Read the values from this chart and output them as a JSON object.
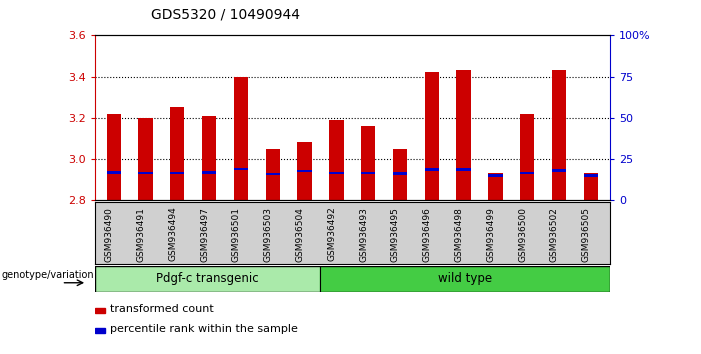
{
  "title": "GDS5320 / 10490944",
  "samples": [
    "GSM936490",
    "GSM936491",
    "GSM936494",
    "GSM936497",
    "GSM936501",
    "GSM936503",
    "GSM936504",
    "GSM936492",
    "GSM936493",
    "GSM936495",
    "GSM936496",
    "GSM936498",
    "GSM936499",
    "GSM936500",
    "GSM936502",
    "GSM936505"
  ],
  "red_values": [
    3.22,
    3.2,
    3.25,
    3.21,
    3.4,
    3.05,
    3.08,
    3.19,
    3.16,
    3.05,
    3.42,
    3.43,
    2.93,
    3.22,
    3.43,
    2.93
  ],
  "blue_bottoms": [
    2.928,
    2.924,
    2.924,
    2.926,
    2.944,
    2.92,
    2.934,
    2.924,
    2.924,
    2.922,
    2.942,
    2.942,
    2.914,
    2.924,
    2.936,
    2.912
  ],
  "blue_heights": [
    0.013,
    0.013,
    0.013,
    0.013,
    0.013,
    0.013,
    0.013,
    0.013,
    0.013,
    0.013,
    0.013,
    0.013,
    0.013,
    0.013,
    0.013,
    0.013
  ],
  "group1_count": 7,
  "group2_count": 9,
  "group1_label": "Pdgf-c transgenic",
  "group2_label": "wild type",
  "genotype_label": "genotype/variation",
  "ymin": 2.8,
  "ymax": 3.6,
  "yticks": [
    2.8,
    3.0,
    3.2,
    3.4,
    3.6
  ],
  "right_yticks": [
    0,
    25,
    50,
    75,
    100
  ],
  "right_yticklabels": [
    "0",
    "25",
    "50",
    "75",
    "100%"
  ],
  "bar_color": "#cc0000",
  "blue_color": "#0000cc",
  "bg_color": "#ffffff",
  "group1_color": "#aaeaaa",
  "group2_color": "#44cc44",
  "bar_width": 0.45,
  "legend_red": "transformed count",
  "legend_blue": "percentile rank within the sample",
  "left_axis_color": "#cc0000",
  "right_axis_color": "#0000cc",
  "grid_yticks": [
    3.0,
    3.2,
    3.4
  ]
}
